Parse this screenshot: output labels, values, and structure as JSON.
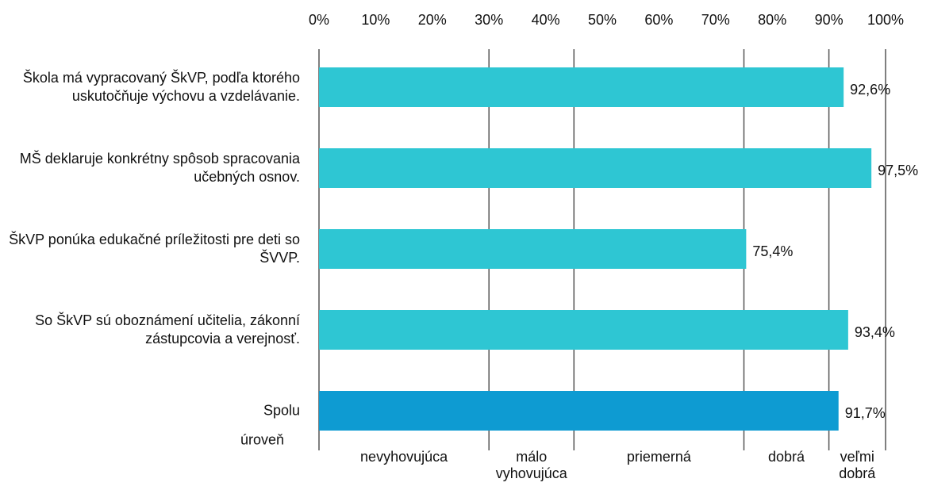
{
  "chart_data": {
    "type": "hbar",
    "categories": [
      "Škola má vypracovaný ŠkVP, podľa ktorého uskutočňuje výchovu a vzdelávanie.",
      "MŠ deklaruje konkrétny spôsob spracovania učebných osnov.",
      "ŠkVP ponúka edukačné príležitosti pre deti so ŠVVP.",
      "So ŠkVP sú oboznámení učitelia, zákonní zástupcovia a verejnosť.",
      "Spolu"
    ],
    "values": [
      92.6,
      97.5,
      75.4,
      93.4,
      91.7
    ],
    "value_labels": [
      "92,6%",
      "97,5%",
      "75,4%",
      "93,4%",
      "91,7%"
    ],
    "colors": [
      "#2ec6d3",
      "#2ec6d3",
      "#2ec6d3",
      "#2ec6d3",
      "#0e9bd2"
    ],
    "xlim": [
      0,
      100
    ],
    "xticks": [
      {
        "value": 0,
        "label": "0%"
      },
      {
        "value": 10,
        "label": "10%"
      },
      {
        "value": 20,
        "label": "20%"
      },
      {
        "value": 30,
        "label": "30%"
      },
      {
        "value": 40,
        "label": "40%"
      },
      {
        "value": 50,
        "label": "50%"
      },
      {
        "value": 60,
        "label": "60%"
      },
      {
        "value": 70,
        "label": "70%"
      },
      {
        "value": 80,
        "label": "80%"
      },
      {
        "value": 90,
        "label": "90%"
      },
      {
        "value": 100,
        "label": "100%"
      }
    ],
    "level_title": "úroveň",
    "level_bounds": [
      0,
      30,
      45,
      75,
      90,
      100
    ],
    "levels": [
      "nevyhovujúca",
      "málo vyhovujúca",
      "priemerná",
      "dobrá",
      "veľmi dobrá"
    ]
  }
}
